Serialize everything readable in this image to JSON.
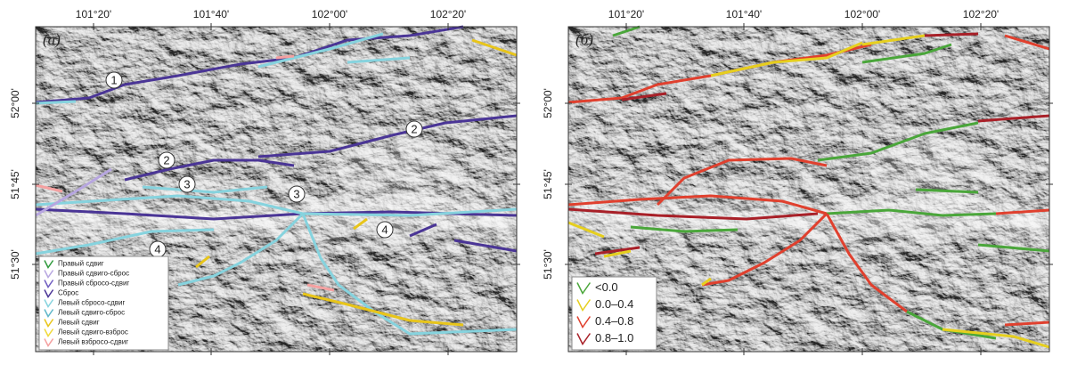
{
  "panels": [
    {
      "label": "(а)",
      "x_ticks": [
        "101°20'",
        "101°40'",
        "102°00'",
        "102°20'"
      ],
      "y_ticks": [
        "52°00'",
        "51°45'",
        "51°30'"
      ],
      "markers": [
        "1",
        "2",
        "2",
        "3",
        "3",
        "4",
        "4"
      ],
      "legend": [
        {
          "name": "Правый сдвиг",
          "color": "#2f9a3c"
        },
        {
          "name": "Правый сдвиго-сброс",
          "color": "#b7a6e0"
        },
        {
          "name": "Правый сбросо-сдвиг",
          "color": "#6f5cc0"
        },
        {
          "name": "Сброс",
          "color": "#4a3596"
        },
        {
          "name": "Левый сбросо-сдвиг",
          "color": "#86d3de"
        },
        {
          "name": "Левый сдвиго-сброс",
          "color": "#5fb7c9"
        },
        {
          "name": "Левый сдвиг",
          "color": "#e8c51a"
        },
        {
          "name": "Левый сдвиго-взброс",
          "color": "#f0d93a"
        },
        {
          "name": "Левый взбросо-сдвиг",
          "color": "#f4a0a0"
        }
      ]
    },
    {
      "label": "(б)",
      "x_ticks": [
        "101°20'",
        "101°40'",
        "102°00'",
        "102°20'"
      ],
      "y_ticks": [
        "52°00'",
        "51°45'",
        "51°30'"
      ],
      "legend": [
        {
          "name": "<0.0",
          "color": "#4aa63a"
        },
        {
          "name": "0.0–0.4",
          "color": "#e6cf1e"
        },
        {
          "name": "0.4–0.8",
          "color": "#e0402e"
        },
        {
          "name": "0.8–1.0",
          "color": "#a82028"
        }
      ]
    }
  ]
}
